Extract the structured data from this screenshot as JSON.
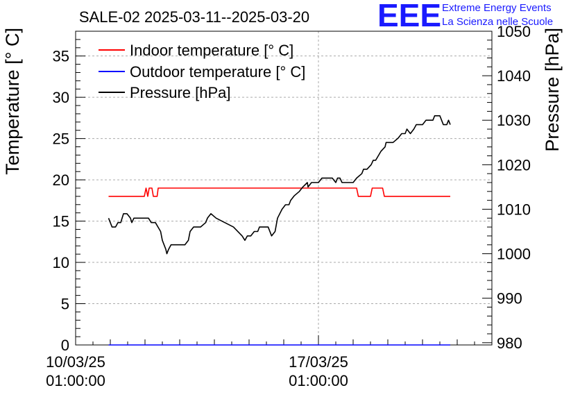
{
  "logo": {
    "mark": "EEE",
    "line1": "Extreme Energy Events",
    "line2": "La Scienza nelle Scuole"
  },
  "chart_data": {
    "type": "line",
    "title": "SALE-02 2025-03-11--2025-03-20",
    "ylabel": "Temperature [° C]",
    "y2label": "Pressure [hPa]",
    "xlabel": "",
    "ylim": [
      0,
      38
    ],
    "y2lim": [
      979.5,
      1050
    ],
    "xlim": [
      0,
      12
    ],
    "x_unit": "days since 10/03/25 01:00:00",
    "grid": true,
    "legend_position": "top-left",
    "yticks": [
      0,
      5,
      10,
      15,
      20,
      25,
      30,
      35
    ],
    "y2ticks": [
      980,
      990,
      1000,
      1010,
      1020,
      1030,
      1040,
      1050
    ],
    "xticks": [
      {
        "x": 0,
        "line1": "10/03/25",
        "line2": "01:00:00"
      },
      {
        "x": 7,
        "line1": "17/03/25",
        "line2": "01:00:00"
      }
    ],
    "series": [
      {
        "name": "Indoor temperature [° C]",
        "color": "#ff0000",
        "axis": "left",
        "points": [
          [
            0.95,
            18
          ],
          [
            1.0,
            18
          ],
          [
            1.98,
            18
          ],
          [
            2.03,
            19
          ],
          [
            2.08,
            18
          ],
          [
            2.12,
            19
          ],
          [
            2.2,
            19
          ],
          [
            2.24,
            18
          ],
          [
            2.3,
            18
          ],
          [
            2.35,
            18
          ],
          [
            2.38,
            19
          ],
          [
            8.1,
            19
          ],
          [
            8.15,
            18
          ],
          [
            8.5,
            18
          ],
          [
            8.55,
            19
          ],
          [
            8.85,
            19
          ],
          [
            8.9,
            18
          ],
          [
            10.8,
            18
          ]
        ]
      },
      {
        "name": "Outdoor temperature [° C]",
        "color": "#0000ff",
        "axis": "left",
        "points": [
          [
            0.95,
            0
          ],
          [
            10.8,
            0
          ]
        ]
      },
      {
        "name": "Pressure [hPa]",
        "color": "#000000",
        "axis": "right",
        "points": [
          [
            0.95,
            1008
          ],
          [
            1.05,
            1006
          ],
          [
            1.15,
            1006
          ],
          [
            1.22,
            1007
          ],
          [
            1.3,
            1007
          ],
          [
            1.38,
            1009
          ],
          [
            1.48,
            1009
          ],
          [
            1.58,
            1008
          ],
          [
            1.62,
            1007
          ],
          [
            1.68,
            1008
          ],
          [
            1.8,
            1008
          ],
          [
            2.1,
            1008
          ],
          [
            2.18,
            1007
          ],
          [
            2.3,
            1007
          ],
          [
            2.45,
            1005
          ],
          [
            2.5,
            1003
          ],
          [
            2.6,
            1001
          ],
          [
            2.63,
            1000
          ],
          [
            2.68,
            1001
          ],
          [
            2.75,
            1002
          ],
          [
            2.85,
            1002
          ],
          [
            3.05,
            1002
          ],
          [
            3.15,
            1002
          ],
          [
            3.25,
            1003
          ],
          [
            3.3,
            1005
          ],
          [
            3.4,
            1006
          ],
          [
            3.6,
            1006
          ],
          [
            3.75,
            1007
          ],
          [
            3.8,
            1008
          ],
          [
            3.9,
            1009
          ],
          [
            4.05,
            1008
          ],
          [
            4.3,
            1007
          ],
          [
            4.55,
            1006
          ],
          [
            4.8,
            1004
          ],
          [
            4.88,
            1003
          ],
          [
            4.95,
            1004
          ],
          [
            5.05,
            1004
          ],
          [
            5.15,
            1005
          ],
          [
            5.25,
            1005
          ],
          [
            5.3,
            1006
          ],
          [
            5.55,
            1006
          ],
          [
            5.65,
            1004
          ],
          [
            5.75,
            1005
          ],
          [
            5.82,
            1008
          ],
          [
            5.95,
            1010
          ],
          [
            6.05,
            1011
          ],
          [
            6.15,
            1011
          ],
          [
            6.2,
            1012
          ],
          [
            6.3,
            1013
          ],
          [
            6.45,
            1014
          ],
          [
            6.55,
            1015
          ],
          [
            6.68,
            1016
          ],
          [
            6.7,
            1015
          ],
          [
            6.8,
            1016
          ],
          [
            6.9,
            1016
          ],
          [
            7.0,
            1016
          ],
          [
            7.1,
            1017
          ],
          [
            7.4,
            1017
          ],
          [
            7.5,
            1016
          ],
          [
            7.55,
            1017
          ],
          [
            7.62,
            1017
          ],
          [
            7.68,
            1016
          ],
          [
            8.0,
            1016
          ],
          [
            8.1,
            1017
          ],
          [
            8.25,
            1018
          ],
          [
            8.3,
            1019
          ],
          [
            8.4,
            1019
          ],
          [
            8.52,
            1020
          ],
          [
            8.58,
            1021
          ],
          [
            8.65,
            1021
          ],
          [
            8.8,
            1023
          ],
          [
            8.92,
            1024
          ],
          [
            8.95,
            1025
          ],
          [
            9.15,
            1025
          ],
          [
            9.3,
            1026
          ],
          [
            9.4,
            1027
          ],
          [
            9.5,
            1027
          ],
          [
            9.55,
            1028
          ],
          [
            9.65,
            1027
          ],
          [
            9.75,
            1028
          ],
          [
            9.82,
            1029
          ],
          [
            9.9,
            1029
          ],
          [
            10.0,
            1029
          ],
          [
            10.1,
            1030
          ],
          [
            10.3,
            1030
          ],
          [
            10.35,
            1031
          ],
          [
            10.5,
            1031
          ],
          [
            10.55,
            1030
          ],
          [
            10.6,
            1029
          ],
          [
            10.7,
            1029
          ],
          [
            10.75,
            1030
          ],
          [
            10.8,
            1029
          ]
        ]
      }
    ]
  }
}
